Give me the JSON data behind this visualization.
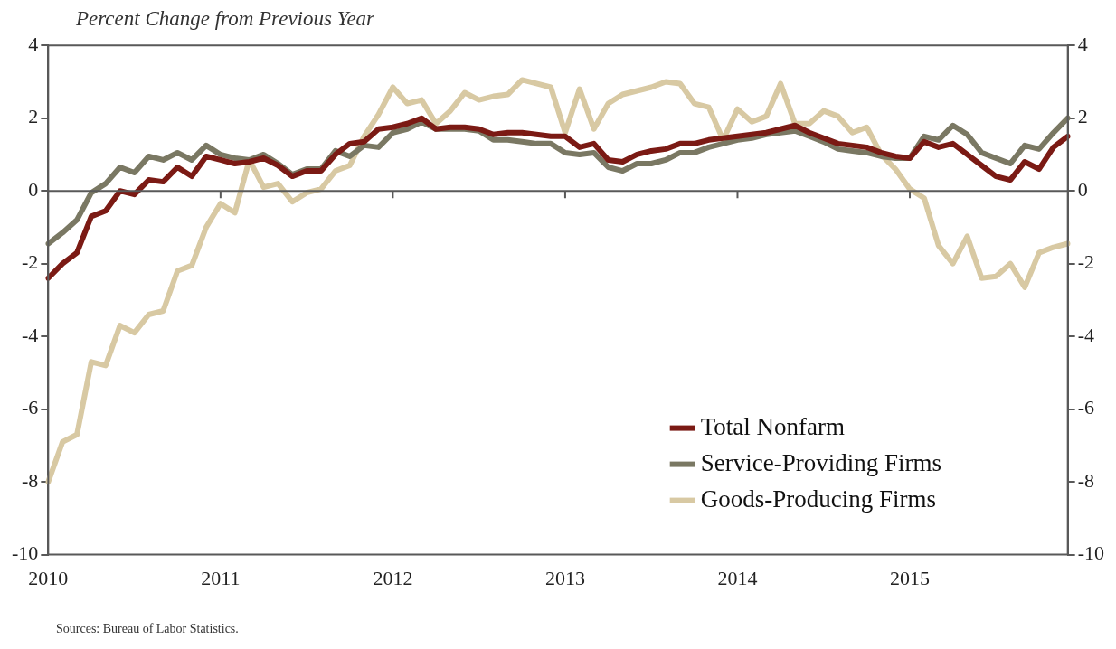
{
  "chart_data": {
    "type": "line",
    "title": "Percent Change from Previous Year",
    "categories": [
      "2010",
      null,
      null,
      null,
      null,
      null,
      null,
      null,
      null,
      null,
      null,
      null,
      "2011",
      null,
      null,
      null,
      null,
      null,
      null,
      null,
      null,
      null,
      null,
      null,
      "2012",
      null,
      null,
      null,
      null,
      null,
      null,
      null,
      null,
      null,
      null,
      null,
      "2013",
      null,
      null,
      null,
      null,
      null,
      null,
      null,
      null,
      null,
      null,
      null,
      "2014",
      null,
      null,
      null,
      null,
      null,
      null,
      null,
      null,
      null,
      null,
      null,
      "2015",
      null,
      null,
      null,
      null,
      null,
      null,
      null,
      null,
      null,
      null,
      null
    ],
    "series": [
      {
        "name": "Total Nonfarm",
        "color": "#7b1a14",
        "values": [
          -2.4,
          -2.0,
          -1.7,
          -0.7,
          -0.55,
          0.0,
          -0.1,
          0.3,
          0.25,
          0.65,
          0.4,
          0.95,
          0.85,
          0.75,
          0.8,
          0.9,
          0.7,
          0.4,
          0.55,
          0.55,
          1.0,
          1.3,
          1.35,
          1.7,
          1.75,
          1.85,
          2.0,
          1.7,
          1.75,
          1.75,
          1.7,
          1.55,
          1.6,
          1.6,
          1.55,
          1.5,
          1.5,
          1.2,
          1.3,
          0.85,
          0.8,
          1.0,
          1.1,
          1.15,
          1.3,
          1.3,
          1.4,
          1.45,
          1.5,
          1.55,
          1.6,
          1.7,
          1.8,
          1.6,
          1.45,
          1.3,
          1.25,
          1.2,
          1.05,
          0.95,
          0.9,
          1.35,
          1.2,
          1.3,
          1.0,
          0.7,
          0.4,
          0.3,
          0.8,
          0.6,
          1.2,
          1.5
        ]
      },
      {
        "name": "Service-Providing Firms",
        "color": "#7a7863",
        "values": [
          -1.45,
          -1.15,
          -0.8,
          -0.05,
          0.2,
          0.65,
          0.5,
          0.95,
          0.85,
          1.05,
          0.85,
          1.25,
          1.0,
          0.9,
          0.85,
          1.0,
          0.75,
          0.45,
          0.6,
          0.6,
          1.1,
          0.95,
          1.25,
          1.2,
          1.6,
          1.7,
          1.9,
          1.7,
          1.7,
          1.7,
          1.65,
          1.4,
          1.4,
          1.35,
          1.3,
          1.3,
          1.05,
          1.0,
          1.05,
          0.65,
          0.55,
          0.75,
          0.75,
          0.85,
          1.05,
          1.05,
          1.2,
          1.3,
          1.4,
          1.45,
          1.55,
          1.6,
          1.65,
          1.5,
          1.35,
          1.15,
          1.1,
          1.05,
          0.95,
          0.9,
          0.9,
          1.5,
          1.4,
          1.8,
          1.55,
          1.05,
          0.9,
          0.75,
          1.25,
          1.15,
          1.6,
          2.0
        ]
      },
      {
        "name": "Goods-Producing Firms",
        "color": "#d8c9a3",
        "values": [
          -8.0,
          -6.9,
          -6.7,
          -4.7,
          -4.8,
          -3.7,
          -3.9,
          -3.4,
          -3.3,
          -2.2,
          -2.05,
          -1.0,
          -0.35,
          -0.6,
          0.85,
          0.1,
          0.2,
          -0.3,
          -0.05,
          0.05,
          0.55,
          0.7,
          1.5,
          2.1,
          2.85,
          2.4,
          2.5,
          1.85,
          2.2,
          2.7,
          2.5,
          2.6,
          2.65,
          3.05,
          2.95,
          2.85,
          1.6,
          2.8,
          1.7,
          2.4,
          2.65,
          2.75,
          2.85,
          3.0,
          2.95,
          2.4,
          2.3,
          1.4,
          2.25,
          1.9,
          2.05,
          2.95,
          1.85,
          1.85,
          2.2,
          2.05,
          1.6,
          1.75,
          1.0,
          0.6,
          0.05,
          -0.2,
          -1.5,
          -2.0,
          -1.25,
          -2.4,
          -2.35,
          -2.0,
          -2.65,
          -1.7,
          -1.55,
          -1.45
        ]
      }
    ],
    "ylim": [
      -10,
      4
    ],
    "yticks": [
      -10,
      -8,
      -6,
      -4,
      -2,
      0,
      2,
      4
    ],
    "y2lim": [
      -10,
      4
    ],
    "y2ticks": [
      -10,
      -8,
      -6,
      -4,
      -2,
      0,
      2,
      4
    ],
    "ref_lines": [
      {
        "axis": "y",
        "value": 0,
        "color": "#595959"
      }
    ],
    "legend": "bottom right",
    "grid": false,
    "marker": "none",
    "line_style": "solid",
    "annotations": [
      "Sources: Bureau of Labor Statistics."
    ]
  }
}
